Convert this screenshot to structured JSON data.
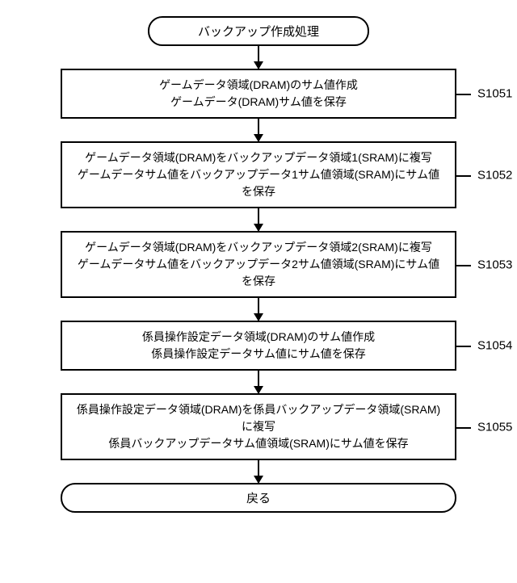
{
  "flowchart": {
    "type": "flowchart",
    "background_color": "#ffffff",
    "stroke_color": "#000000",
    "stroke_width": 2,
    "font_size_box": 14,
    "font_size_label": 15,
    "terminal_border_radius": 18,
    "process_width": 490,
    "arrow_head_size": 10,
    "start": {
      "text": "バックアップ作成処理"
    },
    "end": {
      "text": "戻る"
    },
    "steps": [
      {
        "id": "S1051",
        "lines": [
          "ゲームデータ領域(DRAM)のサム値作成",
          "ゲームデータ(DRAM)サム値を保存"
        ],
        "arrow_before_height": 28
      },
      {
        "id": "S1052",
        "lines": [
          "ゲームデータ領域(DRAM)をバックアップデータ領域1(SRAM)に複写",
          "ゲームデータサム値をバックアップデータ1サム値領域(SRAM)にサム値を保存"
        ],
        "arrow_before_height": 28
      },
      {
        "id": "S1053",
        "lines": [
          "ゲームデータ領域(DRAM)をバックアップデータ領域2(SRAM)に複写",
          "ゲームデータサム値をバックアップデータ2サム値領域(SRAM)にサム値を保存"
        ],
        "arrow_before_height": 28
      },
      {
        "id": "S1054",
        "lines": [
          "係員操作設定データ領域(DRAM)のサム値作成",
          "係員操作設定データサム値にサム値を保存"
        ],
        "arrow_before_height": 28
      },
      {
        "id": "S1055",
        "lines": [
          "係員操作設定データ領域(DRAM)を係員バックアップデータ領域(SRAM)に複写",
          "係員バックアップデータサム値領域(SRAM)にサム値を保存"
        ],
        "arrow_before_height": 28
      }
    ],
    "arrow_after_last_height": 28,
    "label_offset_right": 8,
    "label_connector_length": 18
  }
}
